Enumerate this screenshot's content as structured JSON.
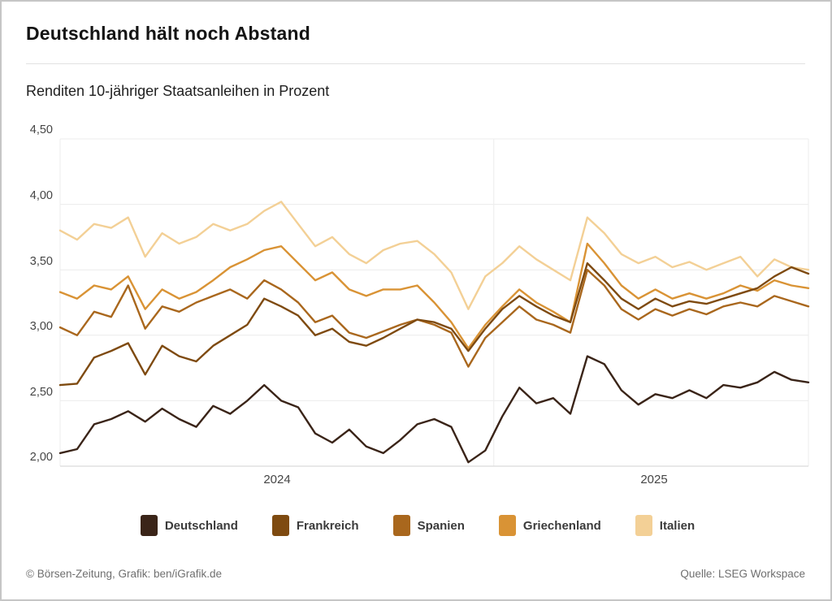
{
  "card": {
    "title": "Deutschland hält noch Abstand",
    "subtitle": "Renditen 10-jähriger Staatsanleihen in Prozent",
    "footer_left": "© Börsen-Zeitung, Grafik: ben/iGrafik.de",
    "footer_right": "Quelle: LSEG Workspace"
  },
  "chart_data": {
    "type": "line",
    "title": "Deutschland hält noch Abstand",
    "ylabel": "Renditen 10-jähriger Staatsanleihen in Prozent",
    "grid": true,
    "legend_position": "bottom",
    "ylim": [
      2.0,
      4.5
    ],
    "y_tick_values": [
      4.5,
      4.0,
      3.5,
      3.0,
      2.5,
      2.0
    ],
    "y_tick_labels": [
      "4,50",
      "4,00",
      "3,50",
      "3,00",
      "2,50",
      "2,00"
    ],
    "x_tick_labels": [
      "2024",
      "2025"
    ],
    "x_unit": "weeks, biweekly samples from start of 2024 to autumn 2025",
    "x_weeks": [
      0,
      2,
      4,
      6,
      8,
      10,
      12,
      14,
      16,
      18,
      20,
      22,
      24,
      26,
      28,
      30,
      32,
      34,
      36,
      38,
      40,
      42,
      44,
      46,
      48,
      50,
      52,
      54,
      56,
      58,
      60,
      62,
      64,
      66,
      68,
      70,
      72,
      74,
      76,
      78,
      80,
      82,
      84,
      86,
      88
    ],
    "year_divider_weeks": [
      0,
      51,
      88
    ],
    "series": [
      {
        "name": "Deutschland",
        "color": "#3A2418",
        "values": [
          2.1,
          2.13,
          2.32,
          2.36,
          2.42,
          2.34,
          2.44,
          2.36,
          2.3,
          2.46,
          2.4,
          2.5,
          2.62,
          2.5,
          2.45,
          2.25,
          2.18,
          2.28,
          2.15,
          2.1,
          2.2,
          2.32,
          2.36,
          2.3,
          2.03,
          2.12,
          2.38,
          2.6,
          2.48,
          2.52,
          2.4,
          2.84,
          2.78,
          2.58,
          2.47,
          2.55,
          2.52,
          2.58,
          2.52,
          2.62,
          2.6,
          2.64,
          2.72,
          2.66,
          2.64
        ]
      },
      {
        "name": "Frankreich",
        "color": "#7E4A10",
        "values": [
          2.62,
          2.63,
          2.83,
          2.88,
          2.94,
          2.7,
          2.92,
          2.84,
          2.8,
          2.92,
          3.0,
          3.08,
          3.28,
          3.22,
          3.15,
          3.0,
          3.05,
          2.95,
          2.92,
          2.98,
          3.05,
          3.12,
          3.1,
          3.05,
          2.88,
          3.05,
          3.2,
          3.3,
          3.22,
          3.15,
          3.1,
          3.55,
          3.42,
          3.28,
          3.2,
          3.28,
          3.22,
          3.26,
          3.24,
          3.28,
          3.32,
          3.36,
          3.45,
          3.52,
          3.47
        ]
      },
      {
        "name": "Spanien",
        "color": "#A9671D",
        "values": [
          3.06,
          3.0,
          3.18,
          3.14,
          3.38,
          3.05,
          3.22,
          3.18,
          3.25,
          3.3,
          3.35,
          3.28,
          3.42,
          3.35,
          3.25,
          3.1,
          3.15,
          3.02,
          2.98,
          3.03,
          3.08,
          3.12,
          3.08,
          3.02,
          2.76,
          2.98,
          3.1,
          3.22,
          3.12,
          3.08,
          3.02,
          3.5,
          3.38,
          3.2,
          3.12,
          3.2,
          3.15,
          3.2,
          3.16,
          3.22,
          3.25,
          3.22,
          3.3,
          3.26,
          3.22
        ]
      },
      {
        "name": "Griechenland",
        "color": "#D99335",
        "values": [
          3.33,
          3.28,
          3.38,
          3.35,
          3.45,
          3.2,
          3.35,
          3.28,
          3.33,
          3.42,
          3.52,
          3.58,
          3.65,
          3.68,
          3.55,
          3.42,
          3.48,
          3.35,
          3.3,
          3.35,
          3.35,
          3.38,
          3.25,
          3.1,
          2.9,
          3.08,
          3.22,
          3.35,
          3.25,
          3.18,
          3.1,
          3.7,
          3.55,
          3.38,
          3.28,
          3.35,
          3.28,
          3.32,
          3.28,
          3.32,
          3.38,
          3.34,
          3.42,
          3.38,
          3.36
        ]
      },
      {
        "name": "Italien",
        "color": "#F3D096",
        "values": [
          3.8,
          3.73,
          3.85,
          3.82,
          3.9,
          3.6,
          3.78,
          3.7,
          3.75,
          3.85,
          3.8,
          3.85,
          3.95,
          4.02,
          3.85,
          3.68,
          3.75,
          3.62,
          3.55,
          3.65,
          3.7,
          3.72,
          3.62,
          3.48,
          3.2,
          3.45,
          3.55,
          3.68,
          3.58,
          3.5,
          3.42,
          3.9,
          3.78,
          3.62,
          3.55,
          3.6,
          3.52,
          3.56,
          3.5,
          3.55,
          3.6,
          3.45,
          3.58,
          3.52,
          3.5
        ]
      }
    ]
  },
  "style": {
    "gridline_color": "#ececec",
    "baseline_color": "#d2d2d2",
    "line_width": 2.4
  }
}
